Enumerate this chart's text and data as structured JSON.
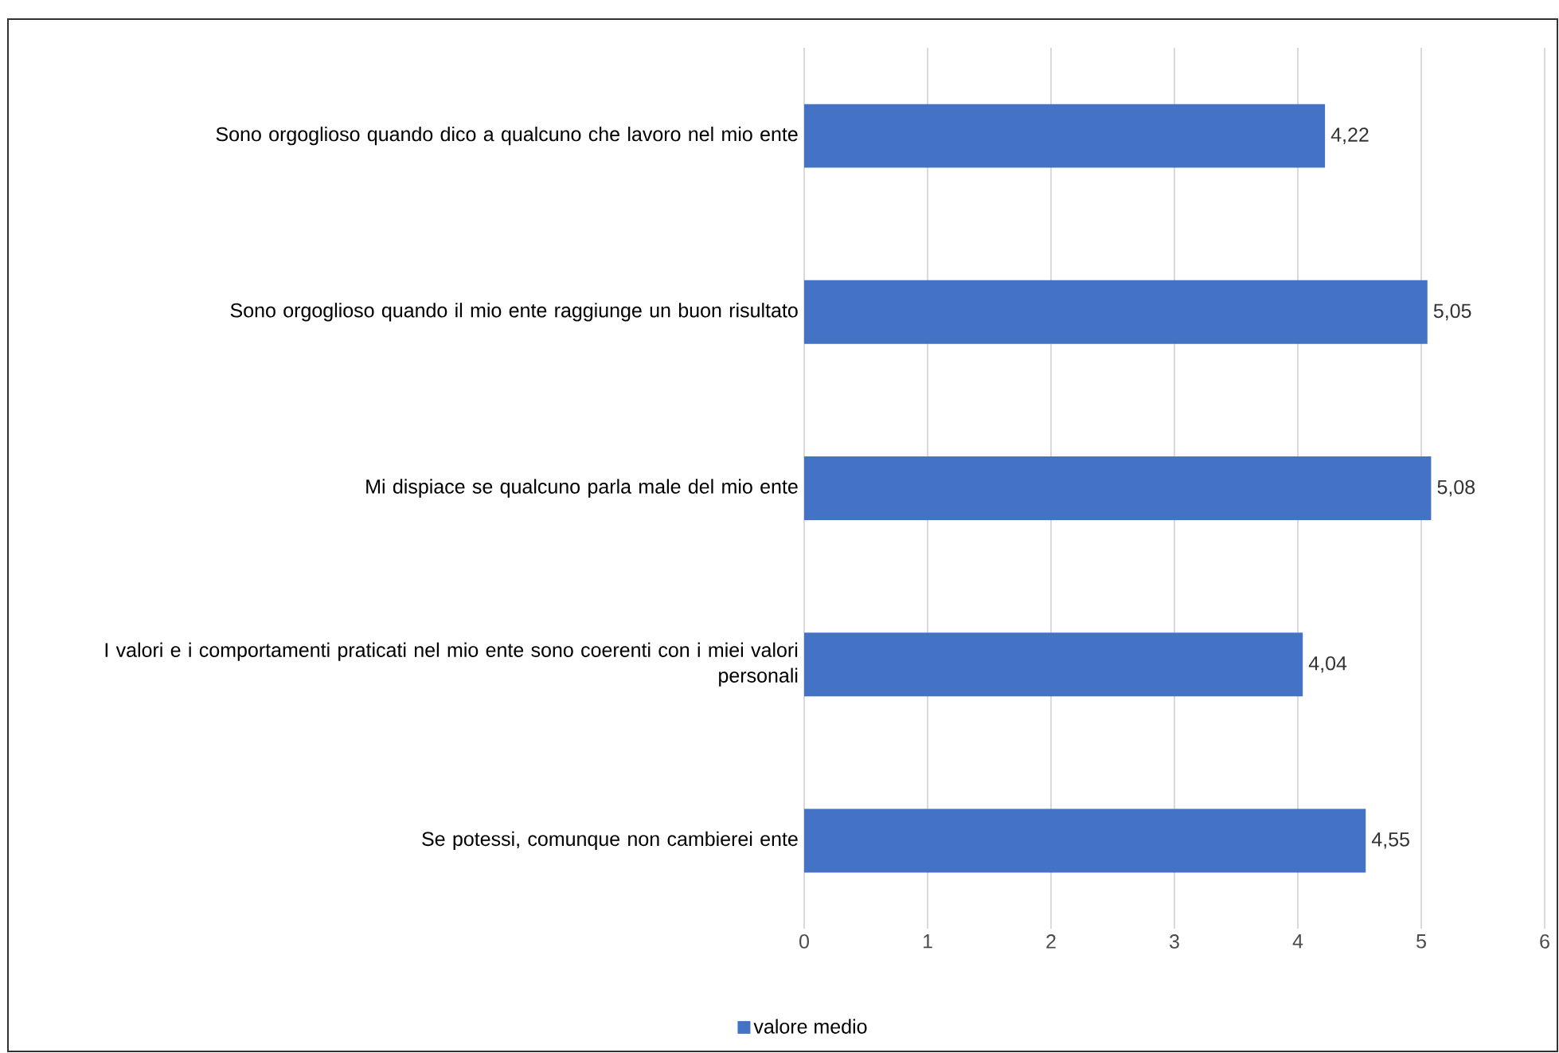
{
  "chart_data": {
    "type": "bar",
    "orientation": "horizontal",
    "categories": [
      "Sono orgoglioso quando dico a qualcuno che lavoro nel mio ente",
      "Sono orgoglioso quando il mio ente raggiunge un buon risultato",
      "Mi dispiace se qualcuno parla male del mio ente",
      "I valori e i comportamenti praticati nel mio ente sono coerenti con i miei valori personali",
      "Se potessi, comunque non cambierei ente"
    ],
    "series": [
      {
        "name": "valore medio",
        "color": "#4472c4",
        "values": [
          4.22,
          5.05,
          5.08,
          4.04,
          4.55
        ],
        "value_labels": [
          "4,22",
          "5,05",
          "5,08",
          "4,04",
          "4,55"
        ]
      }
    ],
    "xlim": [
      0,
      6
    ],
    "xticks": [
      0,
      1,
      2,
      3,
      4,
      5,
      6
    ],
    "grid": "x",
    "legend": "bottom"
  }
}
